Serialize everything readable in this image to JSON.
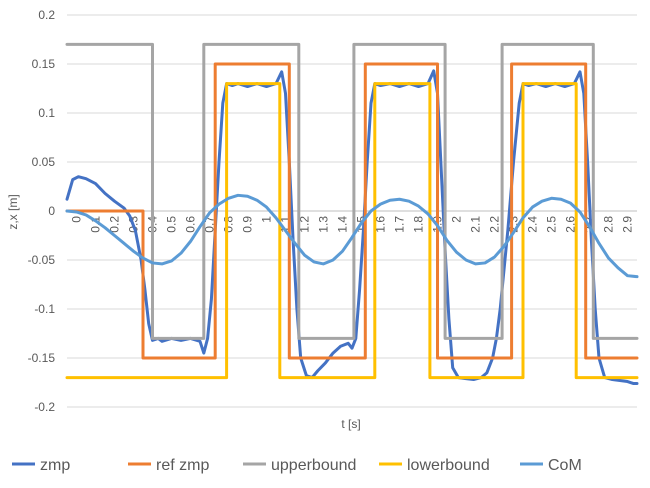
{
  "chart_data": {
    "type": "line",
    "title": "",
    "xlabel": "t [s]",
    "ylabel": "z,x [m]",
    "xlim": [
      0,
      3.0
    ],
    "ylim": [
      -0.2,
      0.2
    ],
    "y_ticks": [
      "0.2",
      "0.15",
      "0.1",
      "0.05",
      "0",
      "-0.05",
      "-0.1",
      "-0.15",
      "-0.2"
    ],
    "y_tick_values": [
      0.2,
      0.15,
      0.1,
      0.05,
      0,
      -0.05,
      -0.1,
      -0.15,
      -0.2
    ],
    "x_ticks": [
      "0",
      "0.1",
      "0.2",
      "0.3",
      "0.4",
      "0.5",
      "0.6",
      "0.7",
      "0.8",
      "0.9",
      "1",
      "1.1",
      "1.2",
      "1.3",
      "1.4",
      "1.5",
      "1.6",
      "1.7",
      "1.8",
      "1.9",
      "2",
      "2.1",
      "2.2",
      "2.3",
      "2.4",
      "2.5",
      "2.6",
      "2.7",
      "2.8",
      "2.9"
    ],
    "grid": true,
    "legend_position": "bottom",
    "series": [
      {
        "name": "zmp",
        "color": "#4472C4",
        "points": [
          [
            0,
            0.012
          ],
          [
            0.03,
            0.032
          ],
          [
            0.06,
            0.035
          ],
          [
            0.1,
            0.033
          ],
          [
            0.15,
            0.028
          ],
          [
            0.2,
            0.018
          ],
          [
            0.25,
            0.01
          ],
          [
            0.3,
            0.003
          ],
          [
            0.33,
            -0.005
          ],
          [
            0.36,
            -0.02
          ],
          [
            0.39,
            -0.05
          ],
          [
            0.41,
            -0.08
          ],
          [
            0.43,
            -0.115
          ],
          [
            0.45,
            -0.132
          ],
          [
            0.48,
            -0.13
          ],
          [
            0.5,
            -0.133
          ],
          [
            0.55,
            -0.13
          ],
          [
            0.6,
            -0.132
          ],
          [
            0.65,
            -0.13
          ],
          [
            0.7,
            -0.133
          ],
          [
            0.72,
            -0.145
          ],
          [
            0.74,
            -0.13
          ],
          [
            0.76,
            -0.09
          ],
          [
            0.78,
            -0.02
          ],
          [
            0.8,
            0.05
          ],
          [
            0.82,
            0.11
          ],
          [
            0.84,
            0.13
          ],
          [
            0.87,
            0.128
          ],
          [
            0.9,
            0.13
          ],
          [
            0.95,
            0.127
          ],
          [
            1.0,
            0.13
          ],
          [
            1.05,
            0.127
          ],
          [
            1.1,
            0.13
          ],
          [
            1.13,
            0.142
          ],
          [
            1.15,
            0.12
          ],
          [
            1.17,
            0.05
          ],
          [
            1.19,
            -0.03
          ],
          [
            1.21,
            -0.1
          ],
          [
            1.23,
            -0.15
          ],
          [
            1.26,
            -0.168
          ],
          [
            1.29,
            -0.17
          ],
          [
            1.32,
            -0.163
          ],
          [
            1.36,
            -0.155
          ],
          [
            1.4,
            -0.145
          ],
          [
            1.44,
            -0.138
          ],
          [
            1.48,
            -0.135
          ],
          [
            1.5,
            -0.14
          ],
          [
            1.52,
            -0.13
          ],
          [
            1.54,
            -0.08
          ],
          [
            1.56,
            -0.02
          ],
          [
            1.58,
            0.05
          ],
          [
            1.6,
            0.11
          ],
          [
            1.62,
            0.13
          ],
          [
            1.65,
            0.128
          ],
          [
            1.7,
            0.13
          ],
          [
            1.75,
            0.127
          ],
          [
            1.8,
            0.13
          ],
          [
            1.85,
            0.127
          ],
          [
            1.9,
            0.13
          ],
          [
            1.93,
            0.143
          ],
          [
            1.95,
            0.12
          ],
          [
            1.97,
            0.04
          ],
          [
            1.99,
            -0.04
          ],
          [
            2.01,
            -0.11
          ],
          [
            2.03,
            -0.16
          ],
          [
            2.06,
            -0.17
          ],
          [
            2.1,
            -0.171
          ],
          [
            2.14,
            -0.172
          ],
          [
            2.18,
            -0.17
          ],
          [
            2.21,
            -0.165
          ],
          [
            2.24,
            -0.15
          ],
          [
            2.26,
            -0.13
          ],
          [
            2.28,
            -0.1
          ],
          [
            2.3,
            -0.06
          ],
          [
            2.32,
            -0.02
          ],
          [
            2.35,
            0.05
          ],
          [
            2.38,
            0.11
          ],
          [
            2.4,
            0.13
          ],
          [
            2.43,
            0.128
          ],
          [
            2.47,
            0.13
          ],
          [
            2.52,
            0.127
          ],
          [
            2.57,
            0.13
          ],
          [
            2.62,
            0.127
          ],
          [
            2.67,
            0.13
          ],
          [
            2.7,
            0.142
          ],
          [
            2.72,
            0.12
          ],
          [
            2.74,
            0.05
          ],
          [
            2.76,
            -0.03
          ],
          [
            2.78,
            -0.1
          ],
          [
            2.8,
            -0.15
          ],
          [
            2.83,
            -0.17
          ],
          [
            2.87,
            -0.172
          ],
          [
            2.91,
            -0.173
          ],
          [
            2.95,
            -0.174
          ],
          [
            2.98,
            -0.176
          ],
          [
            3.0,
            -0.176
          ]
        ]
      },
      {
        "name": "ref zmp",
        "color": "#ED7D31",
        "points": [
          [
            0,
            0
          ],
          [
            0.4,
            0
          ],
          [
            0.4,
            -0.15
          ],
          [
            0.78,
            -0.15
          ],
          [
            0.78,
            0.15
          ],
          [
            1.17,
            0.15
          ],
          [
            1.17,
            -0.15
          ],
          [
            1.57,
            -0.15
          ],
          [
            1.57,
            0.15
          ],
          [
            1.95,
            0.15
          ],
          [
            1.95,
            -0.15
          ],
          [
            2.34,
            -0.15
          ],
          [
            2.34,
            0.15
          ],
          [
            2.73,
            0.15
          ],
          [
            2.73,
            -0.15
          ],
          [
            3.0,
            -0.15
          ]
        ]
      },
      {
        "name": "upperbound",
        "color": "#A5A5A5",
        "points": [
          [
            0,
            0.17
          ],
          [
            0.45,
            0.17
          ],
          [
            0.45,
            -0.13
          ],
          [
            0.72,
            -0.13
          ],
          [
            0.72,
            0.17
          ],
          [
            1.22,
            0.17
          ],
          [
            1.22,
            -0.13
          ],
          [
            1.51,
            -0.13
          ],
          [
            1.51,
            0.17
          ],
          [
            1.99,
            0.17
          ],
          [
            1.99,
            -0.13
          ],
          [
            2.29,
            -0.13
          ],
          [
            2.29,
            0.17
          ],
          [
            2.77,
            0.17
          ],
          [
            2.77,
            -0.13
          ],
          [
            3.0,
            -0.13
          ]
        ]
      },
      {
        "name": "lowerbound",
        "color": "#FFC000",
        "points": [
          [
            0,
            -0.17
          ],
          [
            0.84,
            -0.17
          ],
          [
            0.84,
            0.13
          ],
          [
            1.12,
            0.13
          ],
          [
            1.12,
            -0.17
          ],
          [
            1.62,
            -0.17
          ],
          [
            1.62,
            0.13
          ],
          [
            1.91,
            0.13
          ],
          [
            1.91,
            -0.17
          ],
          [
            2.4,
            -0.17
          ],
          [
            2.4,
            0.13
          ],
          [
            2.68,
            0.13
          ],
          [
            2.68,
            -0.17
          ],
          [
            3.0,
            -0.17
          ]
        ]
      },
      {
        "name": "CoM",
        "color": "#5B9BD5",
        "points": [
          [
            0,
            0
          ],
          [
            0.05,
            -0.001
          ],
          [
            0.1,
            -0.004
          ],
          [
            0.15,
            -0.01
          ],
          [
            0.2,
            -0.017
          ],
          [
            0.25,
            -0.025
          ],
          [
            0.3,
            -0.033
          ],
          [
            0.35,
            -0.041
          ],
          [
            0.4,
            -0.048
          ],
          [
            0.45,
            -0.053
          ],
          [
            0.5,
            -0.054
          ],
          [
            0.55,
            -0.051
          ],
          [
            0.6,
            -0.043
          ],
          [
            0.65,
            -0.031
          ],
          [
            0.7,
            -0.016
          ],
          [
            0.75,
            -0.002
          ],
          [
            0.8,
            0.007
          ],
          [
            0.85,
            0.013
          ],
          [
            0.9,
            0.016
          ],
          [
            0.95,
            0.015
          ],
          [
            1.0,
            0.011
          ],
          [
            1.05,
            0.004
          ],
          [
            1.1,
            -0.007
          ],
          [
            1.15,
            -0.02
          ],
          [
            1.2,
            -0.033
          ],
          [
            1.25,
            -0.045
          ],
          [
            1.3,
            -0.052
          ],
          [
            1.35,
            -0.054
          ],
          [
            1.4,
            -0.05
          ],
          [
            1.45,
            -0.041
          ],
          [
            1.5,
            -0.027
          ],
          [
            1.55,
            -0.012
          ],
          [
            1.6,
            0.0
          ],
          [
            1.65,
            0.007
          ],
          [
            1.7,
            0.011
          ],
          [
            1.75,
            0.012
          ],
          [
            1.8,
            0.01
          ],
          [
            1.85,
            0.005
          ],
          [
            1.9,
            -0.003
          ],
          [
            1.95,
            -0.015
          ],
          [
            2.0,
            -0.03
          ],
          [
            2.05,
            -0.042
          ],
          [
            2.1,
            -0.05
          ],
          [
            2.15,
            -0.054
          ],
          [
            2.2,
            -0.053
          ],
          [
            2.25,
            -0.047
          ],
          [
            2.3,
            -0.036
          ],
          [
            2.35,
            -0.022
          ],
          [
            2.4,
            -0.007
          ],
          [
            2.45,
            0.004
          ],
          [
            2.5,
            0.01
          ],
          [
            2.55,
            0.013
          ],
          [
            2.6,
            0.012
          ],
          [
            2.65,
            0.008
          ],
          [
            2.7,
            -0.001
          ],
          [
            2.75,
            -0.016
          ],
          [
            2.8,
            -0.033
          ],
          [
            2.85,
            -0.048
          ],
          [
            2.9,
            -0.058
          ],
          [
            2.95,
            -0.066
          ],
          [
            3.0,
            -0.067
          ]
        ]
      }
    ]
  }
}
